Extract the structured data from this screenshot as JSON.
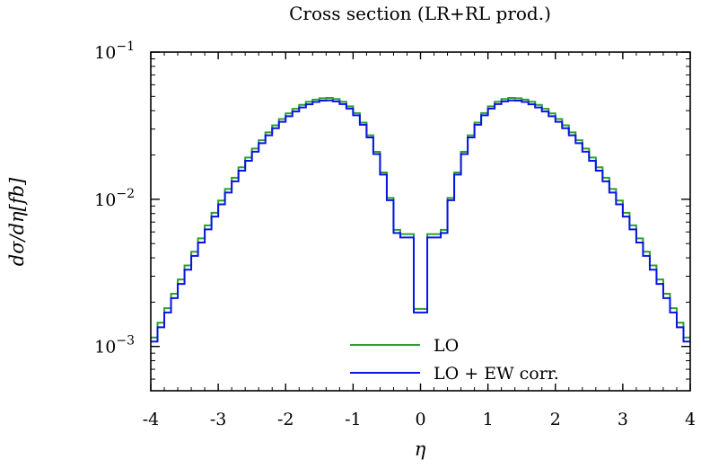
{
  "chart_data": {
    "type": "line",
    "step": true,
    "title": "Cross section (LR+RL prod.)",
    "xlabel": "η",
    "ylabel": "dσ/dη[fb]",
    "xlim": [
      -4,
      4
    ],
    "ylim": [
      0.0005,
      0.1
    ],
    "yscale": "log",
    "grid": false,
    "legend_position": "bottom-center",
    "x_ticks": [
      -4,
      -3,
      -2,
      -1,
      0,
      1,
      2,
      3,
      4
    ],
    "x_tick_labels": [
      "-4",
      "-3",
      "-2",
      "-1",
      "0",
      "1",
      "2",
      "3",
      "4"
    ],
    "y_ticks": [
      0.001,
      0.01,
      0.1
    ],
    "y_tick_labels": [
      {
        "base": "10",
        "exp": "−3"
      },
      {
        "base": "10",
        "exp": "−2"
      },
      {
        "base": "10",
        "exp": "−1"
      }
    ],
    "bin_width": 0.1,
    "x": [
      -3.95,
      -3.85,
      -3.75,
      -3.65,
      -3.55,
      -3.45,
      -3.35,
      -3.25,
      -3.15,
      -3.05,
      -2.95,
      -2.85,
      -2.75,
      -2.65,
      -2.55,
      -2.45,
      -2.35,
      -2.25,
      -2.15,
      -2.05,
      -1.95,
      -1.85,
      -1.75,
      -1.65,
      -1.55,
      -1.45,
      -1.35,
      -1.25,
      -1.15,
      -1.05,
      -0.95,
      -0.85,
      -0.75,
      -0.65,
      -0.55,
      -0.45,
      -0.35,
      -0.25,
      -0.15,
      -0.05,
      0.05,
      0.15,
      0.25,
      0.35,
      0.45,
      0.55,
      0.65,
      0.75,
      0.85,
      0.95,
      1.05,
      1.15,
      1.25,
      1.35,
      1.45,
      1.55,
      1.65,
      1.75,
      1.85,
      1.95,
      2.05,
      2.15,
      2.25,
      2.35,
      2.45,
      2.55,
      2.65,
      2.75,
      2.85,
      2.95,
      3.05,
      3.15,
      3.25,
      3.35,
      3.45,
      3.55,
      3.65,
      3.75,
      3.85,
      3.95
    ],
    "series": [
      {
        "name": "LO",
        "color": "#2ca02c",
        "values": [
          0.00115,
          0.00145,
          0.00182,
          0.00228,
          0.00285,
          0.00355,
          0.0044,
          0.00542,
          0.00665,
          0.0081,
          0.0098,
          0.01175,
          0.014,
          0.0165,
          0.0192,
          0.0221,
          0.0252,
          0.0285,
          0.0318,
          0.0351,
          0.0383,
          0.0412,
          0.0438,
          0.046,
          0.0476,
          0.0486,
          0.0488,
          0.048,
          0.046,
          0.0428,
          0.0385,
          0.0332,
          0.0272,
          0.021,
          0.0152,
          0.0102,
          0.0062,
          0.0058,
          0.0058,
          0.0018,
          0.0018,
          0.0058,
          0.0058,
          0.0062,
          0.0102,
          0.0152,
          0.021,
          0.0272,
          0.0332,
          0.0385,
          0.0428,
          0.046,
          0.048,
          0.0488,
          0.0486,
          0.0476,
          0.046,
          0.0438,
          0.0412,
          0.0383,
          0.0351,
          0.0318,
          0.0285,
          0.0252,
          0.0221,
          0.0192,
          0.0165,
          0.014,
          0.01175,
          0.0098,
          0.0081,
          0.00665,
          0.00542,
          0.0044,
          0.00355,
          0.00285,
          0.00228,
          0.00182,
          0.00145,
          0.00115
        ]
      },
      {
        "name": "LO + EW corr.",
        "color": "#0a14e6",
        "values": [
          0.00108,
          0.00135,
          0.0017,
          0.00213,
          0.00266,
          0.00332,
          0.00412,
          0.00508,
          0.00624,
          0.00762,
          0.00924,
          0.0111,
          0.01325,
          0.01565,
          0.01825,
          0.02105,
          0.02405,
          0.0272,
          0.0304,
          0.0336,
          0.0367,
          0.0395,
          0.04205,
          0.0442,
          0.0458,
          0.0468,
          0.047,
          0.04625,
          0.04435,
          0.0413,
          0.0372,
          0.0321,
          0.0263,
          0.0203,
          0.0147,
          0.00985,
          0.0059,
          0.0055,
          0.0055,
          0.0017,
          0.0017,
          0.0055,
          0.0055,
          0.0059,
          0.00985,
          0.0147,
          0.0203,
          0.0263,
          0.0321,
          0.0372,
          0.0413,
          0.04435,
          0.04625,
          0.047,
          0.0468,
          0.0458,
          0.0442,
          0.04205,
          0.0395,
          0.0367,
          0.0336,
          0.0304,
          0.0272,
          0.02405,
          0.02105,
          0.01825,
          0.01565,
          0.01325,
          0.0111,
          0.00924,
          0.00762,
          0.00624,
          0.00508,
          0.00412,
          0.00332,
          0.00266,
          0.00213,
          0.0017,
          0.00135,
          0.00108
        ]
      }
    ]
  }
}
